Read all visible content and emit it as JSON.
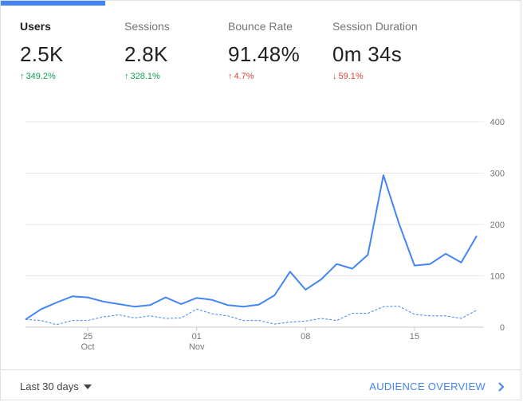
{
  "metrics": [
    {
      "label": "Users",
      "value": "2.5K",
      "arrow": "↑",
      "delta": "349.2%"
    },
    {
      "label": "Sessions",
      "value": "2.8K",
      "arrow": "↑",
      "delta": "328.1%"
    },
    {
      "label": "Bounce Rate",
      "value": "91.48%",
      "arrow": "↑",
      "delta": "4.7%"
    },
    {
      "label": "Session Duration",
      "value": "0m 34s",
      "arrow": "↓",
      "delta": "59.1%"
    }
  ],
  "chart_data": {
    "type": "line",
    "ylim": [
      0,
      400
    ],
    "yticks": [
      "400",
      "300",
      "200",
      "100",
      "0"
    ],
    "xtick_labels": [
      {
        "day": "25",
        "month": "Oct",
        "index": 4
      },
      {
        "day": "01",
        "month": "Nov",
        "index": 11
      },
      {
        "day": "08",
        "month": "",
        "index": 18
      },
      {
        "day": "15",
        "month": "",
        "index": 25
      }
    ],
    "grid": true,
    "series": [
      {
        "style": "solid",
        "color": "#4285f4",
        "values": [
          15,
          35,
          48,
          60,
          58,
          50,
          45,
          40,
          43,
          58,
          45,
          57,
          53,
          43,
          40,
          44,
          62,
          108,
          73,
          93,
          123,
          114,
          141,
          296,
          202,
          120,
          123,
          143,
          126,
          178
        ]
      },
      {
        "style": "dashed",
        "color": "#4285f4",
        "values": [
          15,
          13,
          5,
          13,
          13,
          20,
          24,
          18,
          22,
          17,
          18,
          35,
          26,
          22,
          13,
          13,
          6,
          10,
          12,
          17,
          13,
          27,
          27,
          40,
          41,
          25,
          22,
          22,
          17,
          33
        ]
      }
    ]
  },
  "footer": {
    "range_label": "Last 30 days",
    "overview_label": "AUDIENCE OVERVIEW"
  }
}
